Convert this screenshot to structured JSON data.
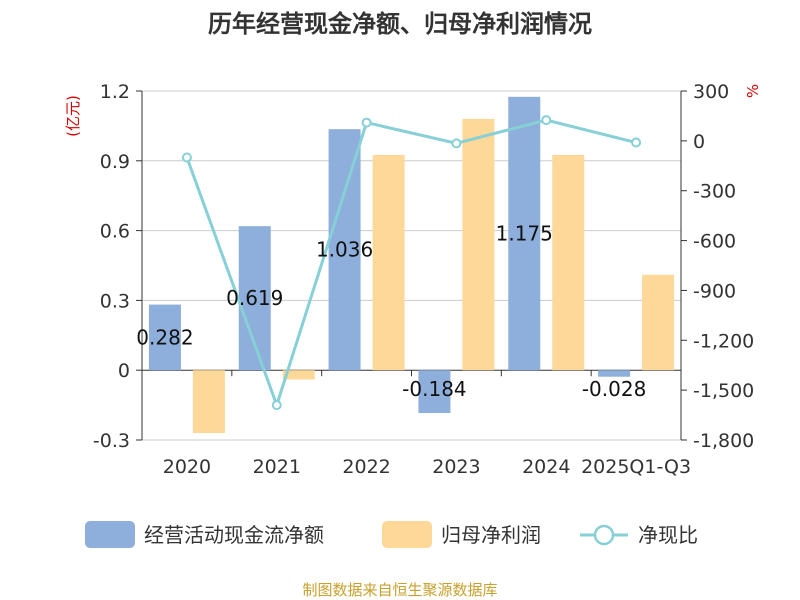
{
  "chart_data": {
    "type": "bar",
    "title": "历年经营现金净额、归母净利润情况",
    "categories": [
      "2020",
      "2021",
      "2022",
      "2023",
      "2024",
      "2025Q1-Q3"
    ],
    "y_left": {
      "unit": "(亿元)",
      "ylim": [
        -0.3,
        1.2
      ],
      "ticks": [
        "1.2",
        "0.9",
        "0.6",
        "0.3",
        "0",
        "-0.3"
      ]
    },
    "y_right": {
      "unit": "%",
      "ylim": [
        -1800,
        300
      ],
      "ticks": [
        "300",
        "0",
        "-300",
        "-600",
        "-900",
        "-1,200",
        "-1,500",
        "-1,800"
      ]
    },
    "series": [
      {
        "name": "经营活动现金流净额",
        "kind": "bar",
        "color": "#8eaedb",
        "values": [
          0.282,
          0.619,
          1.036,
          -0.184,
          1.175,
          -0.028
        ],
        "labels": [
          "0.282",
          "0.619",
          "1.036",
          "-0.184",
          "1.175",
          "-0.028"
        ]
      },
      {
        "name": "归母净利润",
        "kind": "bar",
        "color": "#fdd898",
        "values": [
          -0.27,
          -0.04,
          0.925,
          1.08,
          0.925,
          0.41
        ]
      },
      {
        "name": "净现比",
        "kind": "line",
        "axis": "right",
        "color": "#86d0d6",
        "values": [
          -100,
          -1590,
          110,
          -15,
          125,
          -10
        ]
      }
    ],
    "grid": true,
    "legend_position": "bottom",
    "source": "制图数据来自恒生聚源数据库"
  }
}
